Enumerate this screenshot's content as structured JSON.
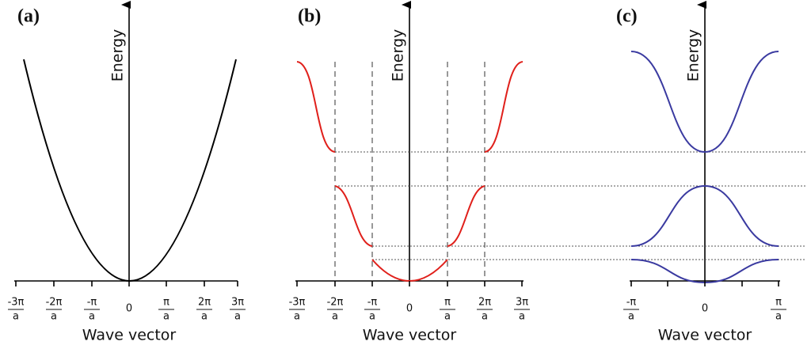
{
  "panels": [
    {
      "label": "(a)",
      "y_label": "Energy",
      "x_label": "Wave vector",
      "ticks": [
        {
          "num": "-3π",
          "den": "a"
        },
        {
          "num": "-2π",
          "den": "a"
        },
        {
          "num": "-π",
          "den": "a"
        },
        {
          "num": "0"
        },
        {
          "num": "π",
          "den": "a"
        },
        {
          "num": "2π",
          "den": "a"
        },
        {
          "num": "3π",
          "den": "a"
        }
      ]
    },
    {
      "label": "(b)",
      "y_label": "Energy",
      "x_label": "Wave vector",
      "ticks": [
        {
          "num": "-3π",
          "den": "a"
        },
        {
          "num": "-2π",
          "den": "a"
        },
        {
          "num": "-π",
          "den": "a"
        },
        {
          "num": "0"
        },
        {
          "num": "π",
          "den": "a"
        },
        {
          "num": "2π",
          "den": "a"
        },
        {
          "num": "3π",
          "den": "a"
        }
      ]
    },
    {
      "label": "(c)",
      "y_label": "Energy",
      "x_label": "Wave vector",
      "ticks": [
        {
          "num": "-π",
          "den": "a"
        },
        {
          "num": "0"
        },
        {
          "num": "π",
          "den": "a"
        }
      ]
    }
  ]
}
